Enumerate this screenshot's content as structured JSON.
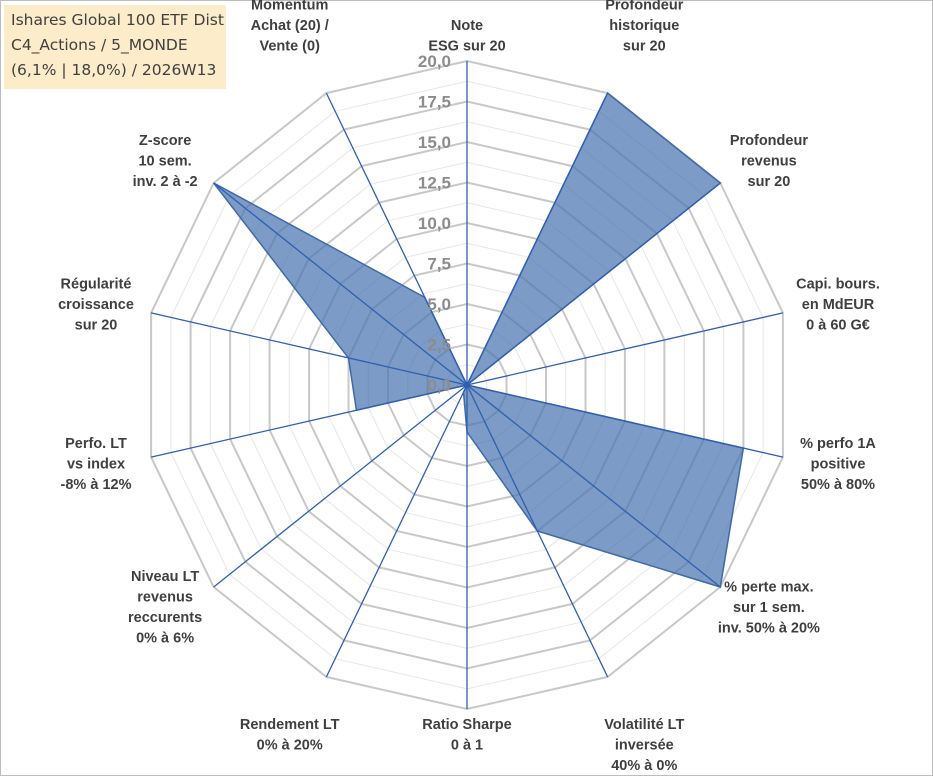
{
  "title_box": {
    "line1": "Ishares Global 100 ETF Dist",
    "line2": "C4_Actions / 5_MONDE",
    "line3": "(6,1% | 18,0%) / 2026W13"
  },
  "chart_data": {
    "type": "radar",
    "title": "Ishares Global 100 ETF Dist",
    "rlim": [
      0,
      20
    ],
    "ticks": [
      "0,0",
      "2,5",
      "5,0",
      "7,5",
      "10,0",
      "12,5",
      "15,0",
      "17,5",
      "20,0"
    ],
    "tick_values": [
      0,
      2.5,
      5,
      7.5,
      10,
      12.5,
      15,
      17.5,
      20
    ],
    "grid": true,
    "colors": {
      "fill": "#4a74b0",
      "line": "#3f6aa8",
      "axis": "#2f5fb0",
      "grid_major": "#c8c8c8",
      "grid_minor": "#e6e6e6",
      "title_bg": "#fcecc9"
    },
    "axes": [
      {
        "label": [
          "Note",
          "ESG sur 20"
        ],
        "value": 0.0
      },
      {
        "label": [
          "Profondeur",
          "historique",
          "sur 20"
        ],
        "value": 20.0
      },
      {
        "label": [
          "Profondeur",
          "revenus",
          "sur 20"
        ],
        "value": 20.0
      },
      {
        "label": [
          "Capi. bours.",
          "en MdEUR",
          "0 à 60 G€"
        ],
        "value": 0.0
      },
      {
        "label": [
          "% perfo 1A",
          "positive",
          "50% à 80%"
        ],
        "value": 17.5
      },
      {
        "label": [
          "% perte max.",
          "sur 1 sem.",
          "inv. 50% à 20%"
        ],
        "value": 20.0
      },
      {
        "label": [
          "Volatilité LT",
          "inversée",
          "40% à 0%"
        ],
        "value": 10.0
      },
      {
        "label": [
          "Ratio Sharpe",
          "0 à 1"
        ],
        "value": 2.9
      },
      {
        "label": [
          "Rendement LT",
          "0% à 20%"
        ],
        "value": 0.5
      },
      {
        "label": [
          "Niveau LT",
          "revenus",
          "reccurents",
          "0% à 6%"
        ],
        "value": 0.0
      },
      {
        "label": [
          "Perfo. LT",
          "vs index",
          "-8% à 12%"
        ],
        "value": 7.0
      },
      {
        "label": [
          "Régularité",
          "croissance",
          "sur 20"
        ],
        "value": 7.5
      },
      {
        "label": [
          "Z-score",
          "10 sem.",
          "inv. 2 à -2"
        ],
        "value": 20.0
      },
      {
        "label": [
          "Momentum",
          "Achat (20) /",
          "Vente (0)"
        ],
        "value": 6.0
      }
    ]
  }
}
